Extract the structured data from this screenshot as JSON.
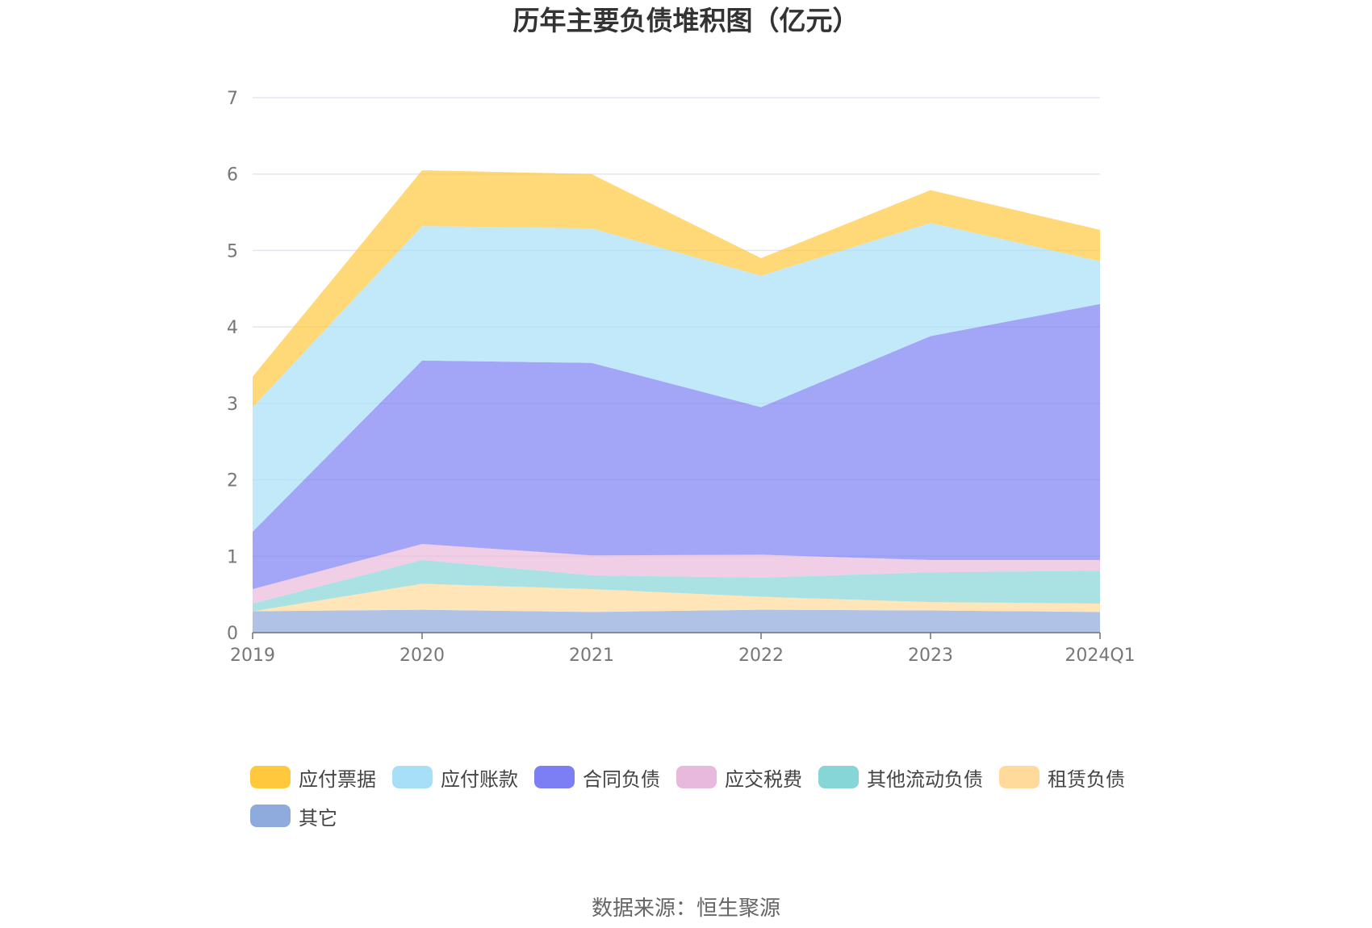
{
  "chart_data": {
    "type": "area",
    "stacked": true,
    "title": "历年主要负债堆积图（亿元）",
    "xlabel": "",
    "ylabel": "",
    "categories": [
      "2019",
      "2020",
      "2021",
      "2022",
      "2023",
      "2024Q1"
    ],
    "ylim": [
      0,
      7
    ],
    "yticks": [
      "0",
      "1",
      "2",
      "3",
      "4",
      "5",
      "6",
      "7"
    ],
    "grid": true,
    "legend_position": "bottom",
    "series": [
      {
        "name": "其它",
        "color": "#8FAADC",
        "values": [
          0.28,
          0.3,
          0.27,
          0.3,
          0.29,
          0.27
        ]
      },
      {
        "name": "租赁负债",
        "color": "#FFDA9A",
        "values": [
          0.0,
          0.34,
          0.3,
          0.17,
          0.11,
          0.11
        ]
      },
      {
        "name": "其他流动负债",
        "color": "#86D6D7",
        "values": [
          0.1,
          0.31,
          0.18,
          0.25,
          0.39,
          0.43
        ]
      },
      {
        "name": "应交税费",
        "color": "#E8B9DC",
        "values": [
          0.19,
          0.21,
          0.26,
          0.3,
          0.16,
          0.14
        ]
      },
      {
        "name": "合同负债",
        "color": "#7C7FF3",
        "values": [
          0.75,
          2.4,
          2.52,
          1.93,
          2.93,
          3.35
        ]
      },
      {
        "name": "应付账款",
        "color": "#A8DFF8",
        "values": [
          1.63,
          1.76,
          1.76,
          1.72,
          1.48,
          0.56
        ]
      },
      {
        "name": "应付票据",
        "color": "#FFC83D",
        "values": [
          0.4,
          0.73,
          0.71,
          0.23,
          0.43,
          0.41
        ]
      }
    ],
    "legend_order": [
      "应付票据",
      "应付账款",
      "合同负债",
      "应交税费",
      "其他流动负债",
      "租赁负债",
      "其它"
    ],
    "source": "数据来源：恒生聚源"
  }
}
